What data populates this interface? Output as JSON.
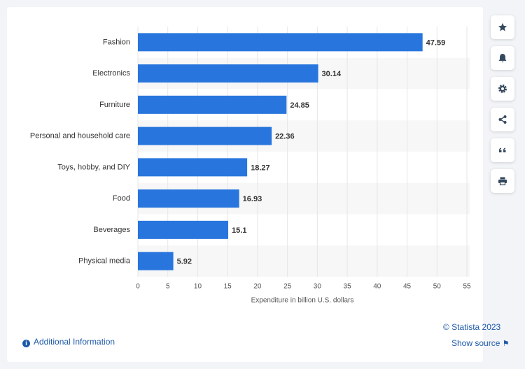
{
  "chart_data": {
    "type": "bar",
    "orientation": "horizontal",
    "categories": [
      "Fashion",
      "Electronics",
      "Furniture",
      "Personal and household care",
      "Toys, hobby, and DIY",
      "Food",
      "Beverages",
      "Physical media"
    ],
    "values": [
      47.59,
      30.14,
      24.85,
      22.36,
      18.27,
      16.93,
      15.1,
      5.92
    ],
    "color": "#2876dd",
    "x_label": "Expenditure in billion U.S. dollars",
    "xlim": [
      0,
      55
    ],
    "xticks": [
      0,
      5,
      10,
      15,
      20,
      25,
      30,
      35,
      40,
      45,
      50,
      55
    ],
    "grid": true
  },
  "footer": {
    "copyright": "© Statista 2023",
    "source": "Show source",
    "info": "Additional Information"
  }
}
